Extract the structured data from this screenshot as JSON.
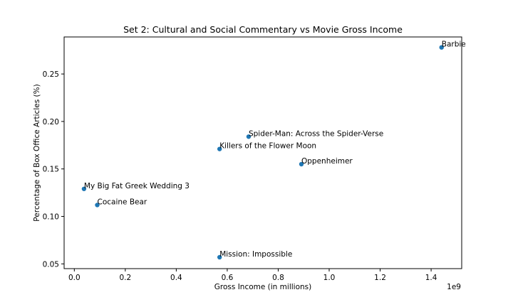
{
  "chart_data": {
    "type": "scatter",
    "title": "Set 2: Cultural and Social Commentary vs Movie Gross Income",
    "xlabel": "Gross Income (in millions)",
    "ylabel": "Percentage of Box Office Articles (%)",
    "x_offset_text": "1e9",
    "xlim": [
      -0.04,
      1.52
    ],
    "ylim": [
      0.045,
      0.289
    ],
    "xticks": [
      0.0,
      0.2,
      0.4,
      0.6,
      0.8,
      1.0,
      1.2,
      1.4
    ],
    "xtick_labels": [
      "0.0",
      "0.2",
      "0.4",
      "0.6",
      "0.8",
      "1.0",
      "1.2",
      "1.4"
    ],
    "yticks": [
      0.05,
      0.1,
      0.15,
      0.2,
      0.25
    ],
    "ytick_labels": [
      "0.05",
      "0.10",
      "0.15",
      "0.20",
      "0.25"
    ],
    "grid": false,
    "marker_color": "#1f77b4",
    "points": [
      {
        "label": "Barbie",
        "x": 1.441,
        "y": 0.278
      },
      {
        "label": "Spider-Man: Across the Spider-Verse",
        "x": 0.684,
        "y": 0.184
      },
      {
        "label": "Killers of the Flower Moon",
        "x": 0.57,
        "y": 0.171
      },
      {
        "label": "Oppenheimer",
        "x": 0.891,
        "y": 0.155
      },
      {
        "label": "My Big Fat Greek Wedding 3",
        "x": 0.038,
        "y": 0.129
      },
      {
        "label": "Cocaine Bear",
        "x": 0.09,
        "y": 0.112
      },
      {
        "label": "Mission: Impossible",
        "x": 0.57,
        "y": 0.057
      }
    ]
  }
}
